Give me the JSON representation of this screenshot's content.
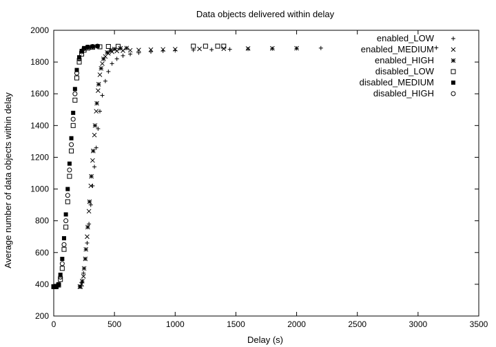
{
  "chart_data": {
    "type": "scatter",
    "title": "Data objects delivered within delay",
    "xlabel": "Delay (s)",
    "ylabel": "Average number of data objects within delay",
    "xlim": [
      0,
      3500
    ],
    "ylim": [
      200,
      2000
    ],
    "xticks": [
      0,
      500,
      1000,
      1500,
      2000,
      2500,
      3000,
      3500
    ],
    "yticks": [
      200,
      400,
      600,
      800,
      1000,
      1200,
      1400,
      1600,
      1800,
      2000
    ],
    "grid": false,
    "legend_position": "top-right",
    "series": [
      {
        "name": "enabled_LOW",
        "marker": "plus",
        "x": [
          215,
          230,
          245,
          260,
          275,
          290,
          305,
          320,
          335,
          350,
          365,
          380,
          400,
          425,
          450,
          480,
          520,
          570,
          630,
          700,
          800,
          900,
          1000,
          1150,
          1300,
          1450,
          1600,
          1800,
          2000,
          2200,
          3150
        ],
        "y": [
          385,
          410,
          470,
          560,
          660,
          780,
          900,
          1020,
          1140,
          1260,
          1380,
          1490,
          1590,
          1680,
          1740,
          1790,
          1820,
          1840,
          1850,
          1858,
          1865,
          1870,
          1873,
          1876,
          1878,
          1880,
          1882,
          1884,
          1886,
          1888,
          1890
        ]
      },
      {
        "name": "enabled_MEDIUM",
        "marker": "x",
        "x": [
          215,
          230,
          245,
          260,
          275,
          290,
          305,
          320,
          335,
          350,
          365,
          380,
          400,
          425,
          450,
          480,
          520,
          570,
          630,
          700,
          800,
          900,
          1000,
          1200,
          1400,
          1600,
          1800,
          2000
        ],
        "y": [
          385,
          400,
          450,
          560,
          700,
          860,
          1020,
          1180,
          1340,
          1490,
          1620,
          1720,
          1790,
          1835,
          1855,
          1865,
          1870,
          1872,
          1874,
          1876,
          1878,
          1880,
          1881,
          1883,
          1884,
          1885,
          1886,
          1887
        ]
      },
      {
        "name": "enabled_HIGH",
        "marker": "star",
        "x": [
          220,
          235,
          250,
          265,
          280,
          295,
          310,
          325,
          340,
          355,
          370,
          390,
          410,
          440,
          470,
          500,
          550,
          600
        ],
        "y": [
          385,
          420,
          500,
          620,
          760,
          920,
          1080,
          1240,
          1400,
          1540,
          1660,
          1760,
          1820,
          1860,
          1875,
          1882,
          1886,
          1888
        ]
      },
      {
        "name": "disabled_LOW",
        "marker": "square",
        "x": [
          0,
          20,
          40,
          55,
          70,
          85,
          100,
          115,
          130,
          145,
          160,
          175,
          190,
          210,
          230,
          250,
          280,
          320,
          380,
          450,
          530,
          1150,
          1250,
          1350,
          1400
        ],
        "y": [
          385,
          385,
          395,
          430,
          500,
          620,
          760,
          920,
          1080,
          1240,
          1400,
          1560,
          1700,
          1800,
          1850,
          1875,
          1888,
          1893,
          1896,
          1898,
          1899,
          1900,
          1900,
          1900,
          1900
        ]
      },
      {
        "name": "disabled_MEDIUM",
        "marker": "filled-square",
        "x": [
          0,
          20,
          40,
          55,
          70,
          85,
          100,
          115,
          130,
          145,
          160,
          175,
          190,
          210,
          230,
          250,
          280,
          320,
          360
        ],
        "y": [
          385,
          385,
          400,
          460,
          560,
          690,
          840,
          1000,
          1160,
          1320,
          1480,
          1630,
          1750,
          1830,
          1870,
          1888,
          1895,
          1898,
          1900
        ]
      },
      {
        "name": "disabled_HIGH",
        "marker": "circle",
        "x": [
          0,
          20,
          40,
          55,
          70,
          85,
          100,
          115,
          130,
          145,
          160,
          175,
          190,
          210,
          230,
          250,
          280,
          320,
          360
        ],
        "y": [
          385,
          385,
          398,
          445,
          530,
          650,
          800,
          960,
          1120,
          1280,
          1440,
          1600,
          1730,
          1820,
          1865,
          1885,
          1894,
          1898,
          1900
        ]
      }
    ]
  }
}
